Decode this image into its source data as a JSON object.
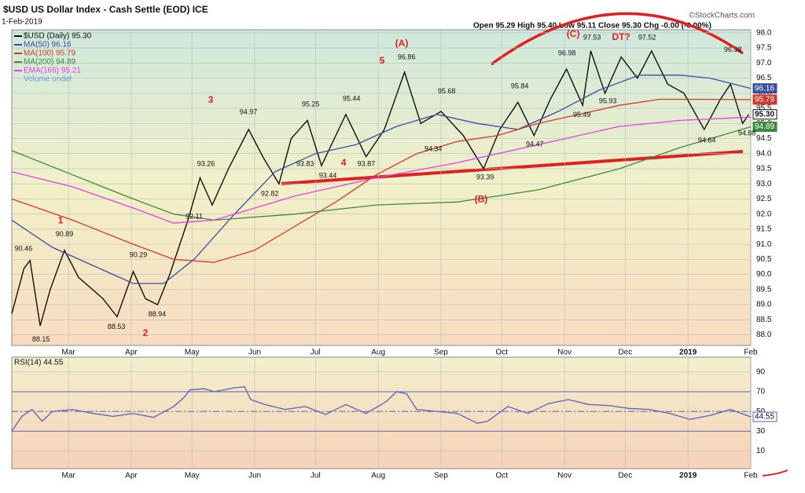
{
  "chart_data": [
    {
      "type": "line",
      "title": "$USD US Dollar Index - Cash Settle (EOD) ICE",
      "date": "1-Feb-2019",
      "quote": "Open 95.29 High 95.40 Low 95.11 Close 95.30 Chg -0.00 (-0.00%)",
      "credit": "©StockCharts.com",
      "xlim": [
        0,
        365
      ],
      "ylim": [
        87.65,
        98.1
      ],
      "xticks": [
        {
          "value": 28,
          "label": "Mar"
        },
        {
          "value": 59,
          "label": "Apr"
        },
        {
          "value": 89,
          "label": "May"
        },
        {
          "value": 120,
          "label": "Jun"
        },
        {
          "value": 150,
          "label": "Jul"
        },
        {
          "value": 181,
          "label": "Aug"
        },
        {
          "value": 212,
          "label": "Sep"
        },
        {
          "value": 242,
          "label": "Oct"
        },
        {
          "value": 273,
          "label": "Nov"
        },
        {
          "value": 303,
          "label": "Dec"
        },
        {
          "value": 334,
          "label": "2019"
        },
        {
          "value": 365,
          "label": "Feb"
        }
      ],
      "yticks": [
        {
          "value": 88,
          "label": "88.0"
        },
        88.5,
        {
          "value": 89,
          "label": "89.0"
        },
        89.5,
        {
          "value": 90,
          "label": "90.0"
        },
        90.5,
        {
          "value": 91,
          "label": "91.0"
        },
        91.5,
        {
          "value": 92,
          "label": "92.0"
        },
        92.5,
        {
          "value": 93,
          "label": "93.0"
        },
        93.5,
        {
          "value": 94,
          "label": "94.0"
        },
        94.5,
        {
          "value": 95,
          "label": "95.0"
        },
        95.5,
        {
          "value": 96,
          "label": "96.0"
        },
        96.5,
        {
          "value": 97,
          "label": "97.0"
        },
        97.5,
        {
          "value": 98,
          "label": "98.0"
        }
      ],
      "grid": true,
      "series": [
        {
          "name": "$USD (Daily) 95.30",
          "color": "#111111",
          "tag": "95.30",
          "x": [
            0,
            6,
            9,
            14,
            19,
            26,
            33,
            45,
            52,
            60,
            66,
            72,
            78,
            87,
            93,
            99,
            107,
            117,
            124,
            132,
            138,
            146,
            153,
            165,
            175,
            184,
            194,
            202,
            212,
            223,
            233,
            241,
            250,
            258,
            266,
            274,
            282,
            286,
            293,
            301,
            309,
            316,
            324,
            332,
            342,
            350,
            355,
            361,
            364
          ],
          "values": [
            88.7,
            90.2,
            90.46,
            88.3,
            89.5,
            90.8,
            89.9,
            89.2,
            88.6,
            90.1,
            89.2,
            89.0,
            90.0,
            91.8,
            93.2,
            92.3,
            93.5,
            94.8,
            93.9,
            93.0,
            94.5,
            95.1,
            93.6,
            95.3,
            93.9,
            94.8,
            96.7,
            95.0,
            95.4,
            94.6,
            93.5,
            94.8,
            95.7,
            94.6,
            95.8,
            96.8,
            95.6,
            97.4,
            96.0,
            97.2,
            96.5,
            97.4,
            96.3,
            96.0,
            94.8,
            95.8,
            96.3,
            95.0,
            95.3
          ]
        },
        {
          "name": "MA(50) 96.16",
          "color": "#3a4ea0",
          "tag": "96.16",
          "x": [
            0,
            20,
            40,
            60,
            75,
            90,
            110,
            130,
            150,
            170,
            190,
            210,
            230,
            250,
            270,
            290,
            310,
            330,
            345,
            365
          ],
          "values": [
            91.8,
            90.9,
            90.3,
            89.7,
            89.7,
            90.5,
            92.0,
            93.4,
            94.0,
            94.3,
            94.9,
            95.3,
            95.0,
            94.8,
            95.4,
            96.1,
            96.6,
            96.6,
            96.5,
            96.16
          ]
        },
        {
          "name": "MA(100) 95.79",
          "color": "#d03a2a",
          "tag": "95.79",
          "x": [
            0,
            30,
            60,
            80,
            100,
            120,
            140,
            160,
            180,
            200,
            220,
            240,
            260,
            280,
            300,
            320,
            340,
            365
          ],
          "values": [
            92.5,
            91.8,
            91.0,
            90.5,
            90.4,
            90.8,
            91.6,
            92.4,
            93.3,
            94.0,
            94.4,
            94.6,
            95.0,
            95.3,
            95.6,
            95.8,
            95.8,
            95.79
          ]
        },
        {
          "name": "MA(200) 94.89",
          "color": "#3c8a3c",
          "tag": "94.89",
          "x": [
            0,
            30,
            60,
            80,
            100,
            140,
            180,
            220,
            260,
            300,
            330,
            365
          ],
          "values": [
            94.1,
            93.3,
            92.5,
            92.0,
            91.8,
            92.0,
            92.3,
            92.4,
            92.8,
            93.5,
            94.2,
            94.89
          ]
        },
        {
          "name": "EMA(165) 95.21",
          "color": "#e040e0",
          "x": [
            0,
            30,
            60,
            80,
            100,
            140,
            180,
            220,
            260,
            300,
            330,
            365
          ],
          "values": [
            93.4,
            92.9,
            92.2,
            91.7,
            91.8,
            92.6,
            93.2,
            93.7,
            94.3,
            94.9,
            95.1,
            95.21
          ]
        }
      ],
      "legend_extra": "Volume undef",
      "annotations": [
        {
          "text": "90.46",
          "x": 5.8,
          "y": 90.84
        },
        {
          "text": "88.15",
          "x": 14.4,
          "y": 87.84
        },
        {
          "text": "90.89",
          "x": 26,
          "y": 91.33
        },
        {
          "text": "88.53",
          "x": 51.7,
          "y": 88.26
        },
        {
          "text": "90.29",
          "x": 62.5,
          "y": 90.63
        },
        {
          "text": "88.94",
          "x": 71.8,
          "y": 88.68
        },
        {
          "text": "93.26",
          "x": 95.9,
          "y": 93.65
        },
        {
          "text": "92.11",
          "x": 90.1,
          "y": 91.91
        },
        {
          "text": "94.97",
          "x": 116.9,
          "y": 95.37
        },
        {
          "text": "92.82",
          "x": 127.4,
          "y": 92.66
        },
        {
          "text": "95.25",
          "x": 147.6,
          "y": 95.63
        },
        {
          "text": "93.83",
          "x": 144.9,
          "y": 93.65
        },
        {
          "text": "93.44",
          "x": 156.1,
          "y": 93.26
        },
        {
          "text": "95.44",
          "x": 167.8,
          "y": 95.81
        },
        {
          "text": "93.87",
          "x": 175.1,
          "y": 93.65
        },
        {
          "text": "96.86",
          "x": 195,
          "y": 97.19
        },
        {
          "text": "95.68",
          "x": 214.8,
          "y": 96.05
        },
        {
          "text": "94.34",
          "x": 208.2,
          "y": 94.15
        },
        {
          "text": "93.39",
          "x": 233.8,
          "y": 93.21
        },
        {
          "text": "95.84",
          "x": 250.9,
          "y": 96.23
        },
        {
          "text": "94.47",
          "x": 258.3,
          "y": 94.3
        },
        {
          "text": "96.98",
          "x": 274.2,
          "y": 97.32
        },
        {
          "text": "95.49",
          "x": 281.6,
          "y": 95.27
        },
        {
          "text": "97.53",
          "x": 286.6,
          "y": 97.84
        },
        {
          "text": "95.93",
          "x": 294.4,
          "y": 95.73
        },
        {
          "text": "97.52",
          "x": 313.8,
          "y": 97.84
        },
        {
          "text": "96.38",
          "x": 356.1,
          "y": 97.43
        },
        {
          "text": "94.64",
          "x": 343.3,
          "y": 94.43
        },
        {
          "text": "94.88",
          "x": 363.1,
          "y": 94.67
        }
      ],
      "wave_color": "#e02020",
      "wave_labels": [
        {
          "text": "1",
          "x": 24.1,
          "y": 91.78
        },
        {
          "text": "2",
          "x": 66,
          "y": 88.05
        },
        {
          "text": "3",
          "x": 98.3,
          "y": 95.76
        },
        {
          "text": "4",
          "x": 163.9,
          "y": 93.68
        },
        {
          "text": "5",
          "x": 182.9,
          "y": 97.06
        },
        {
          "text": "(A)",
          "x": 192.6,
          "y": 97.64
        },
        {
          "text": "(B)",
          "x": 231.8,
          "y": 92.48
        },
        {
          "text": "(C)",
          "x": 277.3,
          "y": 97.95
        },
        {
          "text": "DT?",
          "x": 301,
          "y": 97.84
        }
      ]
    },
    {
      "type": "line",
      "title": "RSI(14) 44.55",
      "xlim": [
        0,
        365
      ],
      "ylim": [
        -8,
        105
      ],
      "yticks": [
        10,
        30,
        50,
        70,
        90
      ],
      "bands": [
        30,
        70
      ],
      "midline": 50,
      "tag": "44.55",
      "series": [
        {
          "color": "#5a60b8",
          "x": [
            0,
            5,
            10,
            15,
            20,
            30,
            40,
            50,
            60,
            70,
            80,
            85,
            88,
            95,
            100,
            105,
            110,
            115,
            118,
            125,
            135,
            145,
            155,
            165,
            175,
            185,
            190,
            195,
            200,
            210,
            220,
            230,
            235,
            245,
            255,
            265,
            275,
            285,
            295,
            305,
            315,
            325,
            335,
            345,
            355,
            365
          ],
          "values": [
            30,
            45,
            52,
            40,
            50,
            52,
            48,
            45,
            48,
            44,
            55,
            64,
            72,
            73,
            70,
            72,
            74,
            75,
            62,
            57,
            52,
            55,
            47,
            57,
            48,
            60,
            70,
            68,
            52,
            50,
            48,
            38,
            40,
            55,
            48,
            58,
            62,
            57,
            56,
            53,
            52,
            48,
            42,
            46,
            52,
            44.55
          ]
        }
      ]
    }
  ]
}
